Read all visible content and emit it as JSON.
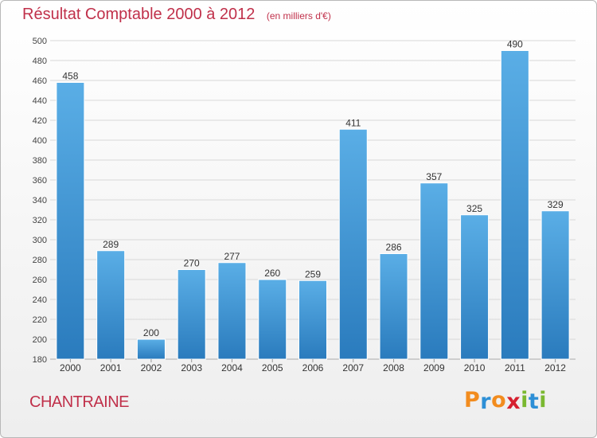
{
  "header": {
    "title": "Résultat Comptable 2000 à 2012",
    "subtitle": "(en milliers d'€)"
  },
  "footer": {
    "commune": "CHANTRAINE",
    "brand_letters": [
      "P",
      "r",
      "o",
      "x",
      "i",
      "t",
      "i"
    ]
  },
  "colors": {
    "title": "#c0304a",
    "bar_top": "#5aaee6",
    "bar_bottom": "#2a7bbd",
    "brand": [
      "#f28c1e",
      "#2d8fd6",
      "#f28c1e",
      "#d6202f",
      "#7ab830",
      "#2d8fd6",
      "#7ab830"
    ]
  },
  "chart_data": {
    "type": "bar",
    "title": "Résultat Comptable 2000 à 2012",
    "subtitle": "(en milliers d'€)",
    "categories": [
      "2000",
      "2001",
      "2002",
      "2003",
      "2004",
      "2005",
      "2006",
      "2007",
      "2008",
      "2009",
      "2010",
      "2011",
      "2012"
    ],
    "values": [
      458,
      289,
      200,
      270,
      277,
      260,
      259,
      411,
      286,
      357,
      325,
      490,
      329
    ],
    "ylim": [
      180,
      500
    ],
    "yticks": [
      180,
      200,
      220,
      240,
      260,
      280,
      300,
      320,
      340,
      360,
      380,
      400,
      420,
      440,
      460,
      480,
      500
    ],
    "grid": true,
    "data_labels": true,
    "xlabel": "",
    "ylabel": ""
  }
}
